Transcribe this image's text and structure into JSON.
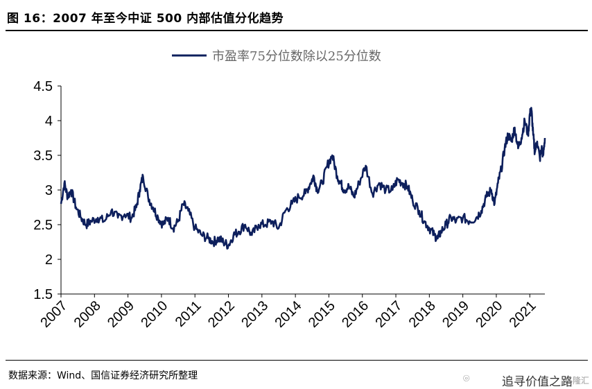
{
  "figure": {
    "title": "图 16：2007 年至今中证 500 内部估值分化趋势",
    "source": "数据来源：Wind、国信证券经济研究所整理",
    "watermark": "追寻价值之路",
    "watermark_secondary": "格隆汇"
  },
  "chart_data": {
    "type": "line",
    "title": "",
    "xlabel": "",
    "ylabel": "",
    "ylim": [
      1.5,
      4.5
    ],
    "yticks": [
      "1.5",
      "2",
      "2.5",
      "3",
      "3.5",
      "4",
      "4.5"
    ],
    "xlim": [
      2007.0,
      2021.45
    ],
    "xticks": [
      "2007",
      "2008",
      "2009",
      "2010",
      "2011",
      "2012",
      "2013",
      "2014",
      "2015",
      "2016",
      "2017",
      "2018",
      "2019",
      "2020",
      "2021"
    ],
    "grid": false,
    "legend_position": "top-center",
    "line_color": "#0d1f5c",
    "series": [
      {
        "name": "市盈率75分位数除以25分位数",
        "x": [
          2007.0,
          2007.1,
          2007.2,
          2007.3,
          2007.45,
          2007.6,
          2007.75,
          2007.9,
          2008.1,
          2008.3,
          2008.5,
          2008.7,
          2008.9,
          2009.1,
          2009.25,
          2009.35,
          2009.45,
          2009.6,
          2009.75,
          2009.9,
          2010.05,
          2010.2,
          2010.35,
          2010.5,
          2010.65,
          2010.8,
          2011.0,
          2011.2,
          2011.4,
          2011.55,
          2011.7,
          2011.85,
          2012.0,
          2012.15,
          2012.3,
          2012.5,
          2012.7,
          2012.9,
          2013.1,
          2013.3,
          2013.5,
          2013.7,
          2013.9,
          2014.1,
          2014.3,
          2014.45,
          2014.55,
          2014.65,
          2014.8,
          2014.95,
          2015.1,
          2015.25,
          2015.35,
          2015.45,
          2015.6,
          2015.75,
          2015.9,
          2016.1,
          2016.3,
          2016.5,
          2016.7,
          2016.9,
          2017.05,
          2017.2,
          2017.35,
          2017.5,
          2017.7,
          2017.85,
          2018.0,
          2018.15,
          2018.25,
          2018.35,
          2018.5,
          2018.65,
          2018.8,
          2019.0,
          2019.2,
          2019.4,
          2019.55,
          2019.7,
          2019.85,
          2019.95,
          2020.05,
          2020.15,
          2020.25,
          2020.35,
          2020.45,
          2020.55,
          2020.65,
          2020.75,
          2020.85,
          2020.95,
          2021.0,
          2021.05,
          2021.1,
          2021.15,
          2021.22,
          2021.3,
          2021.35,
          2021.4,
          2021.45
        ],
        "values": [
          2.8,
          3.1,
          2.9,
          3.0,
          2.75,
          2.6,
          2.5,
          2.55,
          2.6,
          2.55,
          2.7,
          2.6,
          2.65,
          2.6,
          2.75,
          3.0,
          3.2,
          2.9,
          2.75,
          2.6,
          2.5,
          2.6,
          2.45,
          2.55,
          2.8,
          2.7,
          2.45,
          2.35,
          2.3,
          2.25,
          2.3,
          2.25,
          2.2,
          2.35,
          2.4,
          2.5,
          2.35,
          2.5,
          2.5,
          2.55,
          2.45,
          2.7,
          2.8,
          2.9,
          2.95,
          3.1,
          3.2,
          3.0,
          3.1,
          3.35,
          3.5,
          3.2,
          3.1,
          3.0,
          3.05,
          2.9,
          3.1,
          3.35,
          2.95,
          3.1,
          3.0,
          3.0,
          3.15,
          3.1,
          3.05,
          2.85,
          2.7,
          2.55,
          2.45,
          2.35,
          2.3,
          2.4,
          2.5,
          2.6,
          2.55,
          2.6,
          2.55,
          2.6,
          2.7,
          2.9,
          3.0,
          2.8,
          3.1,
          3.3,
          3.6,
          3.8,
          3.7,
          3.9,
          3.6,
          3.75,
          4.0,
          3.8,
          4.1,
          4.15,
          3.8,
          3.55,
          3.7,
          3.45,
          3.6,
          3.5,
          3.75
        ]
      }
    ]
  }
}
